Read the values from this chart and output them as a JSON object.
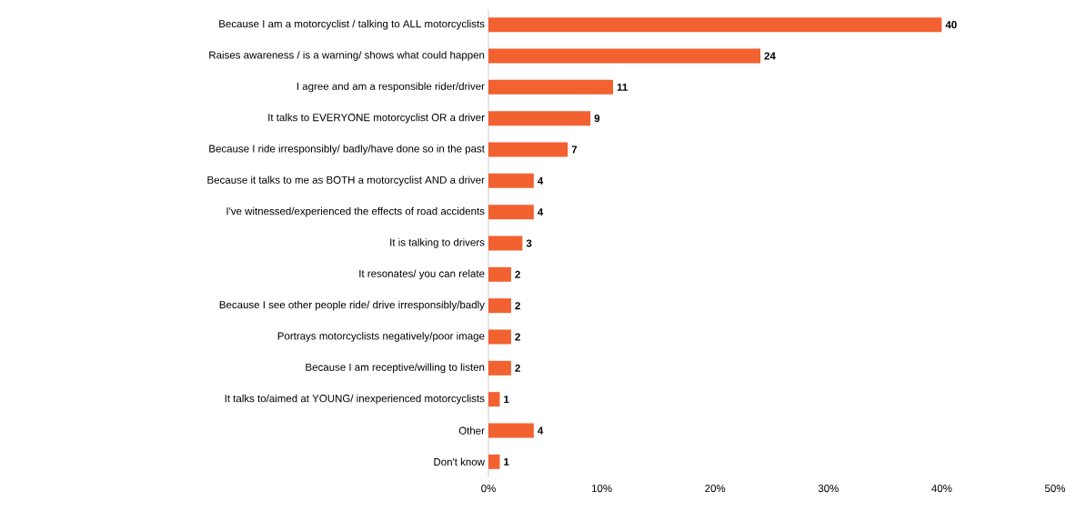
{
  "chart_data": {
    "type": "bar",
    "orientation": "horizontal",
    "color": "#f26130",
    "data_labels": true,
    "categories": [
      "Because I am a motorcyclist / talking to ALL motorcyclists",
      "Raises awareness  / is a warning/  shows what could happen",
      "I agree and am a responsible rider/driver",
      "It talks to EVERYONE motorcyclist OR a driver",
      "Because I ride irresponsibly/ badly/have done so in the past",
      "Because it talks to me as BOTH  a motorcyclist AND a driver",
      "I've witnessed/experienced the effects of road accidents",
      "It is talking to drivers",
      "It resonates/ you can relate",
      "Because I see other people ride/ drive irresponsibly/badly",
      "Portrays motorcyclists negatively/poor image",
      "Because I am receptive/willing to listen",
      "It talks to/aimed at YOUNG/ inexperienced motorcyclists",
      "Other",
      "Don't know"
    ],
    "values": [
      40,
      24,
      11,
      9,
      7,
      4,
      4,
      3,
      2,
      2,
      2,
      2,
      1,
      4,
      1
    ],
    "xlim": [
      0,
      50
    ],
    "xticks": [
      {
        "value": 0,
        "label": "0%"
      },
      {
        "value": 10,
        "label": "10%"
      },
      {
        "value": 20,
        "label": "20%"
      },
      {
        "value": 30,
        "label": "30%"
      },
      {
        "value": 40,
        "label": "40%"
      },
      {
        "value": 50,
        "label": "50%"
      }
    ]
  }
}
